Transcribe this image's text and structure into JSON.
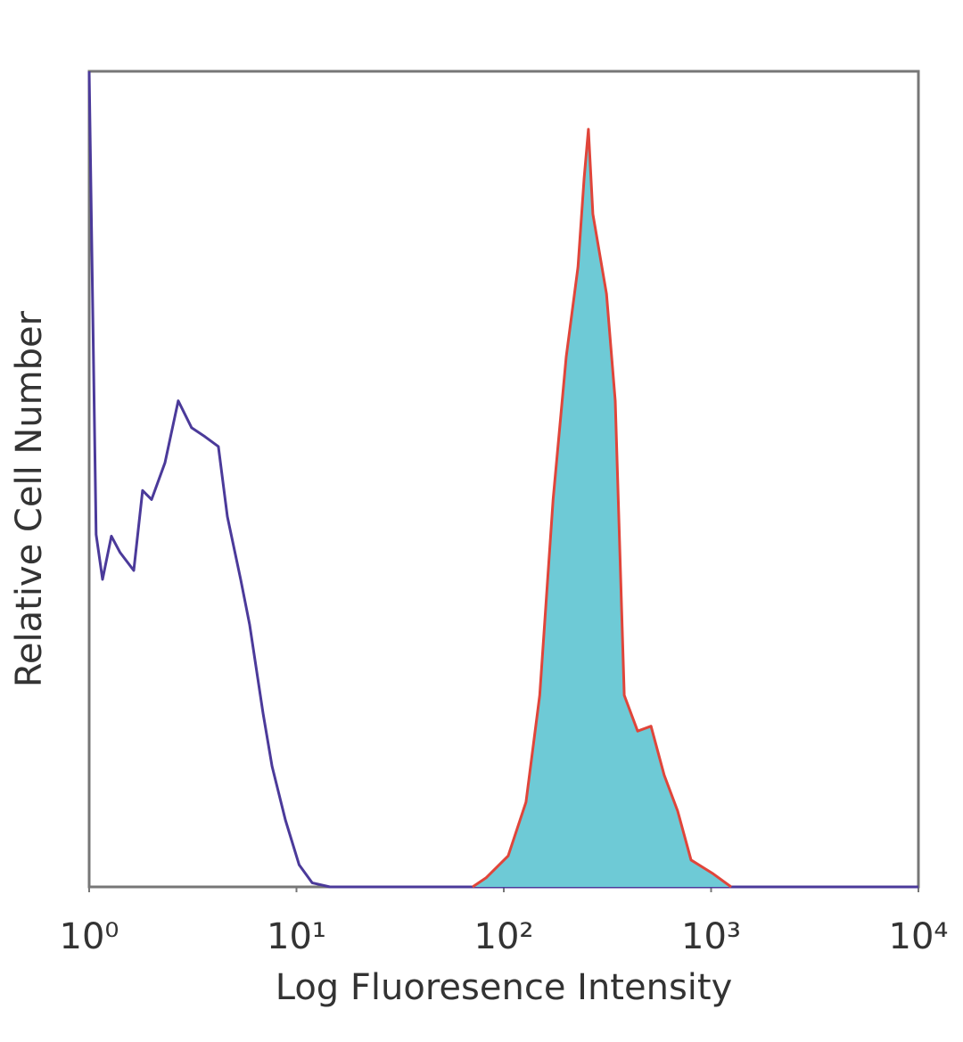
{
  "chart_data": {
    "type": "line",
    "xlabel": "Log Fluoresence Intensity",
    "ylabel": "Relative Cell Number",
    "xscale": "log",
    "xlim": [
      1,
      10000
    ],
    "xticks": [
      {
        "value": 1,
        "label": "10⁰"
      },
      {
        "value": 10,
        "label": "10¹"
      },
      {
        "value": 100,
        "label": "10²"
      },
      {
        "value": 1000,
        "label": "10³"
      },
      {
        "value": 10000,
        "label": "10⁴"
      }
    ],
    "ylim": [
      0,
      100
    ],
    "grid": false,
    "series": [
      {
        "color": "#4b3a9a",
        "x": [
          1,
          1.08,
          1.16,
          1.28,
          1.41,
          1.64,
          1.81,
          2.0,
          2.32,
          2.69,
          3.12,
          3.62,
          4.2,
          4.64,
          5.38,
          5.94,
          6.9,
          7.62,
          8.84,
          10.3,
          11.9,
          14.5,
          10000
        ],
        "values": [
          100,
          43.2,
          37.7,
          43,
          41,
          38.8,
          48.6,
          47.5,
          52,
          59.6,
          56.3,
          55.2,
          54,
          45.4,
          37.7,
          32.2,
          21.3,
          14.8,
          8.2,
          2.7,
          0.5,
          0,
          0
        ]
      },
      {
        "color": "#e0453a",
        "fill": "#6ecad6",
        "x": [
          70.7,
          82,
          105,
          128,
          149,
          173,
          200,
          228,
          244,
          256,
          269,
          313,
          345,
          381,
          442,
          513,
          594,
          690,
          800,
          1025,
          1250
        ],
        "values": [
          0,
          1.1,
          3.8,
          10.4,
          23.5,
          47.5,
          65,
          76,
          86.9,
          92.9,
          82.5,
          72.7,
          59.6,
          23.5,
          19.1,
          19.7,
          13.7,
          9.3,
          3.3,
          1.6,
          0
        ]
      }
    ]
  }
}
